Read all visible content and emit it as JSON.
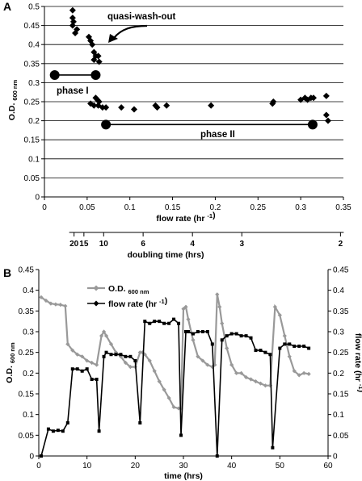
{
  "chart_data": [
    {
      "panel": "A",
      "type": "scatter",
      "xlabel": "flow rate (hr -1)",
      "ylabel": "O.D. 600 nm",
      "xlim": [
        0,
        0.35
      ],
      "ylim": [
        0,
        0.5
      ],
      "x_ticks": [
        "0",
        "0.05",
        "0.1",
        "0.15",
        "0.2",
        "0.25",
        "0.3",
        "0.35"
      ],
      "y_ticks": [
        "0",
        "0.05",
        "0.1",
        "0.15",
        "0.2",
        "0.25",
        "0.3",
        "0.35",
        "0.4",
        "0.45",
        "0.5"
      ],
      "grid": "horizontal",
      "points": [
        [
          0.033,
          0.49
        ],
        [
          0.033,
          0.47
        ],
        [
          0.034,
          0.46
        ],
        [
          0.033,
          0.45
        ],
        [
          0.036,
          0.43
        ],
        [
          0.038,
          0.44
        ],
        [
          0.052,
          0.42
        ],
        [
          0.054,
          0.41
        ],
        [
          0.056,
          0.4
        ],
        [
          0.058,
          0.38
        ],
        [
          0.06,
          0.37
        ],
        [
          0.058,
          0.36
        ],
        [
          0.063,
          0.37
        ],
        [
          0.064,
          0.355
        ],
        [
          0.054,
          0.245
        ],
        [
          0.058,
          0.24
        ],
        [
          0.06,
          0.26
        ],
        [
          0.062,
          0.255
        ],
        [
          0.064,
          0.25
        ],
        [
          0.063,
          0.24
        ],
        [
          0.068,
          0.235
        ],
        [
          0.072,
          0.235
        ],
        [
          0.09,
          0.235
        ],
        [
          0.105,
          0.23
        ],
        [
          0.13,
          0.24
        ],
        [
          0.132,
          0.235
        ],
        [
          0.143,
          0.24
        ],
        [
          0.195,
          0.24
        ],
        [
          0.267,
          0.245
        ],
        [
          0.268,
          0.25
        ],
        [
          0.3,
          0.255
        ],
        [
          0.305,
          0.26
        ],
        [
          0.308,
          0.255
        ],
        [
          0.312,
          0.26
        ],
        [
          0.315,
          0.26
        ],
        [
          0.33,
          0.265
        ],
        [
          0.33,
          0.215
        ],
        [
          0.332,
          0.2
        ]
      ],
      "phase_lines": [
        {
          "label": "phase I",
          "x1": 0.012,
          "x2": 0.06,
          "y": 0.32
        },
        {
          "label": "phase II",
          "x1": 0.072,
          "x2": 0.314,
          "y": 0.19
        }
      ],
      "annotation": "quasi-wash-out",
      "secondary_axis": {
        "label": "doubling time (hrs)",
        "ticks": [
          {
            "label": "20",
            "value": 20
          },
          {
            "label": "15",
            "value": 15
          },
          {
            "label": "10",
            "value": 10
          },
          {
            "label": "6",
            "value": 6
          },
          {
            "label": "4",
            "value": 4
          },
          {
            "label": "3",
            "value": 3
          },
          {
            "label": "2",
            "value": 2
          }
        ]
      }
    },
    {
      "panel": "B",
      "type": "line",
      "xlabel": "time (hrs)",
      "ylabel": "O.D. 600 nm",
      "y2label": "flow rate (hr -1)",
      "xlim": [
        0,
        60
      ],
      "ylim": [
        0,
        0.45
      ],
      "y2lim": [
        0,
        0.45
      ],
      "x_ticks": [
        "0",
        "10",
        "20",
        "30",
        "40",
        "50",
        "60"
      ],
      "y_ticks": [
        "0",
        "0.05",
        "0.1",
        "0.15",
        "0.2",
        "0.25",
        "0.3",
        "0.35",
        "0.4",
        "0.45"
      ],
      "legend_position": "top-left",
      "series": [
        {
          "name": "O.D. 600 nm",
          "color": "#999999",
          "marker": "diamond",
          "points": [
            [
              0.5,
              0.383
            ],
            [
              1.5,
              0.375
            ],
            [
              2.5,
              0.368
            ],
            [
              3.5,
              0.366
            ],
            [
              4.5,
              0.365
            ],
            [
              5.5,
              0.362
            ],
            [
              6,
              0.27
            ],
            [
              7,
              0.255
            ],
            [
              8,
              0.245
            ],
            [
              9,
              0.24
            ],
            [
              10,
              0.23
            ],
            [
              11,
              0.225
            ],
            [
              12,
              0.22
            ],
            [
              13,
              0.29
            ],
            [
              13.5,
              0.3
            ],
            [
              14,
              0.29
            ],
            [
              15,
              0.27
            ],
            [
              16,
              0.25
            ],
            [
              17,
              0.24
            ],
            [
              18,
              0.225
            ],
            [
              19,
              0.215
            ],
            [
              20,
              0.215
            ],
            [
              21,
              0.25
            ],
            [
              21.5,
              0.25
            ],
            [
              22,
              0.245
            ],
            [
              23,
              0.23
            ],
            [
              24,
              0.205
            ],
            [
              25,
              0.18
            ],
            [
              26,
              0.16
            ],
            [
              27,
              0.14
            ],
            [
              28,
              0.118
            ],
            [
              29,
              0.115
            ],
            [
              29.5,
              0.115
            ],
            [
              30,
              0.355
            ],
            [
              30.5,
              0.36
            ],
            [
              31,
              0.33
            ],
            [
              32,
              0.28
            ],
            [
              33,
              0.24
            ],
            [
              34,
              0.23
            ],
            [
              35,
              0.22
            ],
            [
              36,
              0.215
            ],
            [
              36.5,
              0.22
            ],
            [
              37,
              0.39
            ],
            [
              37.5,
              0.36
            ],
            [
              38,
              0.32
            ],
            [
              39,
              0.26
            ],
            [
              40,
              0.22
            ],
            [
              41,
              0.2
            ],
            [
              42,
              0.2
            ],
            [
              43,
              0.19
            ],
            [
              44,
              0.185
            ],
            [
              45,
              0.18
            ],
            [
              46,
              0.175
            ],
            [
              47,
              0.17
            ],
            [
              48,
              0.17
            ],
            [
              49,
              0.36
            ],
            [
              50,
              0.34
            ],
            [
              51,
              0.29
            ],
            [
              52,
              0.24
            ],
            [
              53,
              0.205
            ],
            [
              54,
              0.195
            ],
            [
              55,
              0.2
            ],
            [
              56,
              0.198
            ]
          ]
        },
        {
          "name": "flow rate (hr -1)",
          "color": "#000000",
          "marker": "square",
          "points": [
            [
              0.5,
              0.0
            ],
            [
              2,
              0.065
            ],
            [
              3,
              0.06
            ],
            [
              4,
              0.062
            ],
            [
              5,
              0.06
            ],
            [
              6,
              0.08
            ],
            [
              7,
              0.21
            ],
            [
              8,
              0.21
            ],
            [
              9,
              0.205
            ],
            [
              10,
              0.21
            ],
            [
              11,
              0.185
            ],
            [
              12,
              0.185
            ],
            [
              12.5,
              0.06
            ],
            [
              13.5,
              0.24
            ],
            [
              14,
              0.25
            ],
            [
              15,
              0.245
            ],
            [
              16,
              0.245
            ],
            [
              17,
              0.245
            ],
            [
              18,
              0.24
            ],
            [
              19,
              0.24
            ],
            [
              20,
              0.23
            ],
            [
              21,
              0.08
            ],
            [
              22,
              0.325
            ],
            [
              23,
              0.32
            ],
            [
              24,
              0.325
            ],
            [
              25,
              0.325
            ],
            [
              26,
              0.32
            ],
            [
              27,
              0.32
            ],
            [
              28,
              0.33
            ],
            [
              29,
              0.32
            ],
            [
              29.5,
              0.05
            ],
            [
              30.5,
              0.3
            ],
            [
              31,
              0.3
            ],
            [
              32,
              0.295
            ],
            [
              33,
              0.3
            ],
            [
              34,
              0.3
            ],
            [
              35,
              0.3
            ],
            [
              36,
              0.27
            ],
            [
              37,
              0.0
            ],
            [
              38,
              0.28
            ],
            [
              39,
              0.29
            ],
            [
              40,
              0.295
            ],
            [
              41,
              0.295
            ],
            [
              42,
              0.29
            ],
            [
              43,
              0.29
            ],
            [
              44,
              0.285
            ],
            [
              45,
              0.255
            ],
            [
              46,
              0.255
            ],
            [
              47,
              0.25
            ],
            [
              48,
              0.245
            ],
            [
              48.5,
              0.02
            ],
            [
              50,
              0.26
            ],
            [
              51,
              0.27
            ],
            [
              52,
              0.27
            ],
            [
              53,
              0.265
            ],
            [
              54,
              0.265
            ],
            [
              55,
              0.265
            ],
            [
              56,
              0.26
            ]
          ]
        }
      ]
    }
  ]
}
